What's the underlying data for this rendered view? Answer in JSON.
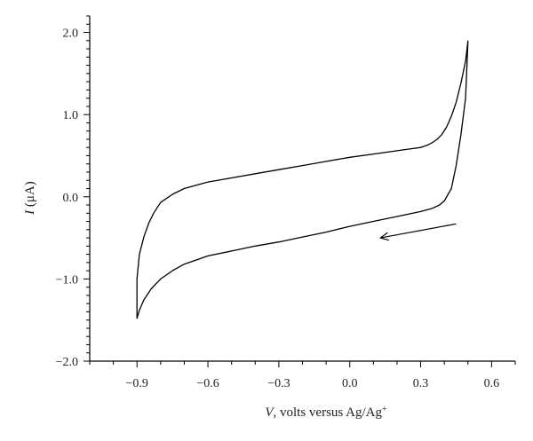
{
  "chart_data": {
    "type": "line",
    "title": "",
    "xlabel": {
      "italic": "V",
      "rest": ", volts versus Ag/Ag",
      "superscript": "+"
    },
    "ylabel": {
      "italic": "I",
      "rest": " (μA)"
    },
    "xlim": [
      -1.1,
      0.7
    ],
    "ylim": [
      -2.0,
      2.2
    ],
    "x_ticks": [
      -0.9,
      -0.6,
      -0.3,
      0.0,
      0.3,
      0.6
    ],
    "x_tick_labels": [
      "−0.9",
      "−0.6",
      "−0.3",
      "0.0",
      "0.3",
      "0.6"
    ],
    "y_ticks": [
      -2.0,
      -1.0,
      0.0,
      1.0,
      2.0
    ],
    "y_tick_labels": [
      "−2.0",
      "−1.0",
      "0.0",
      "1.0",
      "2.0"
    ],
    "grid": false,
    "legend": "none",
    "line_color": "#000000",
    "series": [
      {
        "x": [
          0.5,
          0.49,
          0.47,
          0.45,
          0.43,
          0.4,
          0.38,
          0.35,
          0.3,
          0.2,
          0.1,
          0.0,
          -0.1,
          -0.2,
          -0.3,
          -0.4,
          -0.5,
          -0.6,
          -0.7,
          -0.75,
          -0.8,
          -0.84,
          -0.87,
          -0.89,
          -0.9,
          -0.9,
          -0.9,
          -0.89,
          -0.87,
          -0.85,
          -0.83,
          -0.8,
          -0.75,
          -0.7,
          -0.65,
          -0.6,
          -0.5,
          -0.4,
          -0.3,
          -0.2,
          -0.1,
          0.0,
          0.1,
          0.2,
          0.25,
          0.3,
          0.33,
          0.35,
          0.37,
          0.39,
          0.41,
          0.43,
          0.45,
          0.47,
          0.49,
          0.5
        ],
        "y": [
          1.9,
          1.2,
          0.75,
          0.38,
          0.1,
          -0.05,
          -0.1,
          -0.14,
          -0.18,
          -0.24,
          -0.3,
          -0.36,
          -0.43,
          -0.49,
          -0.55,
          -0.6,
          -0.66,
          -0.72,
          -0.82,
          -0.9,
          -1.0,
          -1.12,
          -1.25,
          -1.38,
          -1.48,
          -1.4,
          -1.0,
          -0.7,
          -0.48,
          -0.32,
          -0.2,
          -0.07,
          0.03,
          0.1,
          0.14,
          0.18,
          0.23,
          0.28,
          0.33,
          0.38,
          0.43,
          0.48,
          0.52,
          0.56,
          0.58,
          0.6,
          0.63,
          0.66,
          0.7,
          0.76,
          0.85,
          0.98,
          1.15,
          1.38,
          1.65,
          1.9
        ]
      }
    ],
    "annotations": [
      {
        "type": "arrow",
        "from": [
          0.45,
          -0.33
        ],
        "to": [
          0.13,
          -0.5
        ]
      }
    ]
  }
}
